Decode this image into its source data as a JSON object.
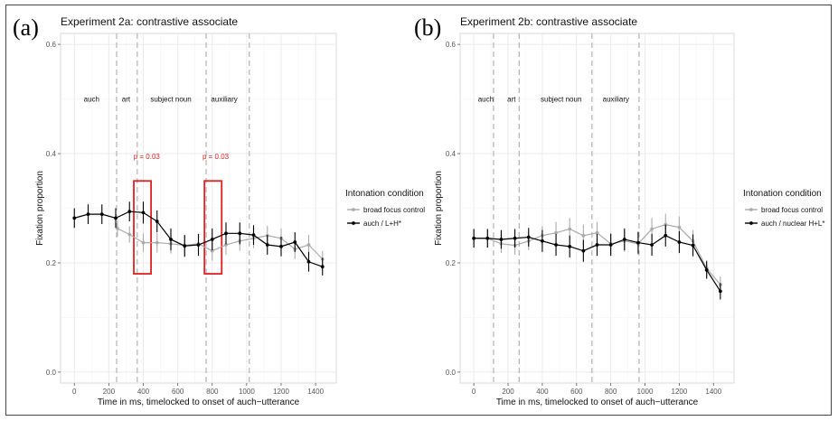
{
  "chart_data": [
    {
      "type": "line",
      "panel_tag": "(a)",
      "title": "Experiment 2a: contrastive associate",
      "xlabel": "Time in ms, timelocked to onset of auch−utterance",
      "ylabel": "Fixation proportion",
      "xlim": [
        -80,
        1520
      ],
      "ylim": [
        -0.02,
        0.62
      ],
      "x_ticks": [
        0,
        200,
        400,
        600,
        800,
        1000,
        1200,
        1400
      ],
      "y_ticks": [
        0.0,
        0.2,
        0.4,
        0.6
      ],
      "y_tick_labels": [
        "0.0",
        "0.2",
        "0.4",
        "0.6"
      ],
      "grid": true,
      "vlines": [
        245,
        365,
        765,
        1015
      ],
      "regions": [
        {
          "label": "auch",
          "x": 100
        },
        {
          "label": "art",
          "x": 300
        },
        {
          "label": "subject noun",
          "x": 560
        },
        {
          "label": "auxiliary",
          "x": 870
        }
      ],
      "region_label_y": 0.5,
      "highlight_boxes": [
        {
          "x0": 345,
          "x1": 445,
          "y0": 0.18,
          "y1": 0.35,
          "label": "p = 0.03",
          "label_x": 420,
          "label_y": 0.395
        },
        {
          "x0": 755,
          "x1": 855,
          "y0": 0.18,
          "y1": 0.35,
          "label": "p = 0.03",
          "label_x": 820,
          "label_y": 0.395
        }
      ],
      "legend_title": "Intonation condition",
      "legend_position": "right",
      "series": [
        {
          "name": "broad focus control",
          "color": "#aaaaaa",
          "x": [
            250,
            320,
            400,
            480,
            560,
            640,
            720,
            800,
            880,
            960,
            1040,
            1120,
            1200,
            1280,
            1360,
            1440
          ],
          "y": [
            0.263,
            0.252,
            0.237,
            0.237,
            0.235,
            0.232,
            0.235,
            0.222,
            0.233,
            0.24,
            0.245,
            0.25,
            0.245,
            0.225,
            0.233,
            0.207
          ],
          "err": [
            0.015,
            0.015,
            0.017,
            0.018,
            0.018,
            0.018,
            0.018,
            0.018,
            0.018,
            0.018,
            0.018,
            0.018,
            0.018,
            0.018,
            0.018,
            0.015
          ]
        },
        {
          "name": "auch / L+H*",
          "color": "#000000",
          "x": [
            0,
            80,
            160,
            240,
            320,
            400,
            480,
            560,
            640,
            720,
            800,
            880,
            960,
            1040,
            1120,
            1200,
            1280,
            1360,
            1440
          ],
          "y": [
            0.282,
            0.289,
            0.289,
            0.282,
            0.294,
            0.292,
            0.276,
            0.243,
            0.231,
            0.233,
            0.243,
            0.254,
            0.254,
            0.251,
            0.233,
            0.23,
            0.238,
            0.202,
            0.193
          ],
          "err": [
            0.018,
            0.018,
            0.018,
            0.018,
            0.018,
            0.02,
            0.02,
            0.02,
            0.02,
            0.02,
            0.02,
            0.02,
            0.02,
            0.018,
            0.018,
            0.018,
            0.018,
            0.018,
            0.016
          ]
        }
      ]
    },
    {
      "type": "line",
      "panel_tag": "(b)",
      "title": "Experiment 2b: contrastive associate",
      "xlabel": "Time in ms, timelocked to onset of auch−utterance",
      "ylabel": "Fixation proportion",
      "xlim": [
        -80,
        1520
      ],
      "ylim": [
        -0.02,
        0.62
      ],
      "x_ticks": [
        0,
        200,
        400,
        600,
        800,
        1000,
        1200,
        1400
      ],
      "y_ticks": [
        0.0,
        0.2,
        0.4,
        0.6
      ],
      "y_tick_labels": [
        "0.0",
        "0.2",
        "0.4",
        "0.6"
      ],
      "grid": true,
      "vlines": [
        115,
        265,
        690,
        965
      ],
      "regions": [
        {
          "label": "auch",
          "x": 70
        },
        {
          "label": "art",
          "x": 220
        },
        {
          "label": "subject noun",
          "x": 510
        },
        {
          "label": "auxiliary",
          "x": 830
        }
      ],
      "region_label_y": 0.5,
      "highlight_boxes": [],
      "legend_title": "Intonation condition",
      "legend_position": "right",
      "series": [
        {
          "name": "broad focus control",
          "color": "#aaaaaa",
          "x": [
            0,
            80,
            160,
            240,
            320,
            400,
            480,
            560,
            640,
            720,
            800,
            880,
            960,
            1040,
            1120,
            1200,
            1280,
            1360,
            1440
          ],
          "y": [
            0.245,
            0.245,
            0.235,
            0.232,
            0.24,
            0.25,
            0.255,
            0.262,
            0.25,
            0.255,
            0.235,
            0.24,
            0.235,
            0.262,
            0.27,
            0.265,
            0.24,
            0.19,
            0.16
          ],
          "err": [
            0.017,
            0.017,
            0.017,
            0.017,
            0.017,
            0.017,
            0.02,
            0.02,
            0.02,
            0.02,
            0.02,
            0.02,
            0.02,
            0.02,
            0.02,
            0.02,
            0.02,
            0.015,
            0.015
          ]
        },
        {
          "name": "auch / nuclear H+L*",
          "color": "#000000",
          "x": [
            0,
            80,
            160,
            240,
            320,
            400,
            480,
            560,
            640,
            720,
            800,
            880,
            960,
            1040,
            1120,
            1200,
            1280,
            1360,
            1440
          ],
          "y": [
            0.245,
            0.245,
            0.243,
            0.245,
            0.247,
            0.24,
            0.233,
            0.23,
            0.222,
            0.233,
            0.233,
            0.243,
            0.237,
            0.233,
            0.25,
            0.238,
            0.232,
            0.187,
            0.148
          ],
          "err": [
            0.017,
            0.017,
            0.017,
            0.017,
            0.017,
            0.02,
            0.02,
            0.02,
            0.02,
            0.02,
            0.02,
            0.02,
            0.02,
            0.02,
            0.02,
            0.02,
            0.02,
            0.016,
            0.015
          ]
        }
      ]
    }
  ]
}
